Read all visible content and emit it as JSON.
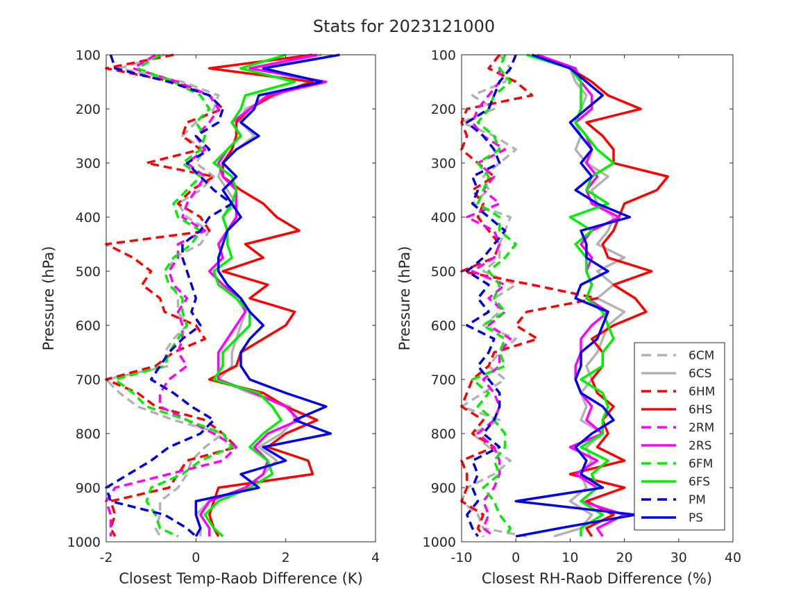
{
  "title": "Stats for 2023121000",
  "chart_data": [
    {
      "type": "line",
      "xlabel": "Closest Temp-Raob Difference (K)",
      "ylabel": "Pressure (hPa)",
      "xlim": [
        -2,
        4
      ],
      "ylim": [
        1000,
        100
      ],
      "y_reversed": true,
      "xticks": [
        "-2",
        "0",
        "2",
        "4"
      ],
      "yticks": [
        "100",
        "200",
        "300",
        "400",
        "500",
        "600",
        "700",
        "800",
        "900",
        "1000"
      ],
      "pressure_levels": [
        100,
        125,
        150,
        175,
        200,
        225,
        250,
        275,
        300,
        325,
        350,
        375,
        400,
        425,
        450,
        475,
        500,
        525,
        550,
        575,
        600,
        625,
        650,
        675,
        700,
        725,
        750,
        775,
        800,
        825,
        850,
        875,
        900,
        925,
        950,
        975,
        990
      ],
      "series": [
        {
          "name": "6CM",
          "color": "#b2b2b2",
          "dash": true,
          "values": [
            -0.7,
            -1.7,
            -0.3,
            0.5,
            0.4,
            0.0,
            -0.3,
            0.2,
            0.0,
            0.4,
            0.1,
            -0.4,
            -0.2,
            0.3,
            0.1,
            -0.5,
            -0.6,
            -0.5,
            -0.4,
            -0.4,
            -0.2,
            -0.5,
            -0.7,
            -0.6,
            -2.0,
            -1.7,
            -1.3,
            -0.5,
            0.6,
            0.2,
            -0.1,
            -0.2,
            -0.4,
            -0.8,
            -0.8,
            -0.9,
            -0.8
          ]
        },
        {
          "name": "6CS",
          "color": "#b2b2b2",
          "dash": false,
          "values": [
            2.8,
            1.5,
            2.5,
            1.8,
            1.1,
            1.0,
            1.3,
            0.9,
            0.6,
            0.5,
            0.7,
            0.9,
            0.6,
            0.7,
            0.5,
            0.6,
            0.3,
            0.6,
            0.9,
            1.1,
            1.0,
            0.9,
            0.8,
            0.8,
            0.5,
            1.2,
            2.1,
            2.2,
            1.9,
            1.4,
            1.8,
            1.5,
            1.1,
            0.3,
            0.0,
            0.1,
            0.1
          ]
        },
        {
          "name": "6HM",
          "color": "#ff0000",
          "dash": true,
          "values": [
            -0.5,
            -2.0,
            -0.5,
            0.3,
            0.6,
            -0.2,
            -0.3,
            0.1,
            -1.1,
            0.4,
            -0.1,
            -0.4,
            0.1,
            0.3,
            -2.1,
            -1.4,
            -1.0,
            -1.2,
            -0.8,
            -0.7,
            0.0,
            0.2,
            -0.5,
            -0.9,
            -2.0,
            -1.3,
            -0.9,
            0.2,
            0.6,
            0.9,
            -0.2,
            -0.4,
            -0.6,
            -1.9,
            -1.8,
            -1.9,
            -1.8
          ]
        },
        {
          "name": "6HS",
          "color": "#ff0000",
          "dash": false,
          "values": [
            2.6,
            0.3,
            2.6,
            1.7,
            1.2,
            0.9,
            0.9,
            0.8,
            0.6,
            0.6,
            1.0,
            1.5,
            1.8,
            2.3,
            1.1,
            1.5,
            0.6,
            1.6,
            1.2,
            2.2,
            2.0,
            1.5,
            1.0,
            0.9,
            0.3,
            1.5,
            2.0,
            2.7,
            2.0,
            1.6,
            2.5,
            2.6,
            0.5,
            0.4,
            0.3,
            0.4,
            0.5
          ]
        },
        {
          "name": "2RM",
          "color": "#ff00ff",
          "dash": true,
          "values": [
            -0.9,
            -1.4,
            -0.4,
            0.3,
            0.5,
            0.3,
            0.0,
            0.2,
            -0.2,
            0.2,
            0.0,
            -0.2,
            -0.3,
            0.2,
            -0.4,
            -0.4,
            -0.6,
            -0.5,
            -0.2,
            -0.4,
            -0.3,
            -0.3,
            -0.4,
            -0.2,
            -0.6,
            -0.8,
            -0.8,
            -0.2,
            0.4,
            0.9,
            0.6,
            -0.6,
            -1.8,
            -2.0,
            -1.9,
            -1.9,
            -1.9
          ]
        },
        {
          "name": "2RS",
          "color": "#ff00ff",
          "dash": false,
          "values": [
            2.7,
            1.2,
            2.9,
            1.6,
            1.2,
            0.8,
            1.0,
            0.7,
            0.5,
            0.6,
            0.9,
            0.9,
            0.9,
            0.7,
            0.5,
            0.6,
            0.3,
            0.6,
            1.0,
            1.1,
            0.9,
            0.7,
            0.5,
            0.5,
            0.5,
            1.3,
            2.0,
            2.3,
            1.6,
            1.3,
            1.6,
            1.5,
            1.1,
            0.3,
            0.1,
            0.3,
            0.3
          ]
        },
        {
          "name": "6FM",
          "color": "#00ee00",
          "dash": true,
          "values": [
            -0.8,
            -1.3,
            -0.5,
            0.1,
            0.3,
            0.0,
            0.2,
            0.1,
            -0.3,
            0.1,
            -0.2,
            -0.5,
            -0.4,
            0.1,
            -0.1,
            -0.5,
            -0.7,
            -0.6,
            -0.3,
            -0.3,
            -0.2,
            -0.4,
            -0.6,
            -0.7,
            -1.8,
            -1.4,
            -1.1,
            -0.2,
            0.6,
            0.8,
            0.1,
            -0.3,
            -1.0,
            -1.1,
            -0.9,
            -0.8,
            -0.4
          ]
        },
        {
          "name": "6FS",
          "color": "#00ee00",
          "dash": false,
          "values": [
            2.0,
            1.0,
            2.2,
            1.1,
            1.0,
            0.8,
            1.0,
            0.7,
            0.4,
            0.8,
            0.9,
            0.8,
            0.6,
            0.7,
            0.7,
            0.8,
            0.4,
            0.5,
            0.9,
            1.2,
            1.2,
            0.9,
            0.6,
            0.6,
            0.4,
            1.4,
            1.7,
            1.9,
            1.5,
            1.2,
            1.6,
            1.7,
            1.2,
            0.5,
            0.2,
            0.4,
            0.6
          ]
        },
        {
          "name": "PM",
          "color": "#0000dd",
          "dash": true,
          "values": [
            -1.9,
            -1.8,
            -0.6,
            0.3,
            0.6,
            0.5,
            0.0,
            0.3,
            -0.2,
            0.1,
            0.4,
            0.8,
            0.3,
            0.1,
            -0.3,
            -0.3,
            -0.2,
            -0.1,
            0.0,
            -0.1,
            0.1,
            -0.3,
            -0.6,
            -0.8,
            -1.0,
            -0.5,
            -0.1,
            0.4,
            0.1,
            -0.6,
            -1.0,
            -1.5,
            -2.0,
            -1.9,
            -0.7,
            -0.2,
            0.0
          ]
        },
        {
          "name": "PS",
          "color": "#0000ee",
          "dash": false,
          "values": [
            3.2,
            1.5,
            2.8,
            1.4,
            1.3,
            1.0,
            1.4,
            0.9,
            0.6,
            0.9,
            0.6,
            0.8,
            1.0,
            0.7,
            0.6,
            0.5,
            0.5,
            0.7,
            1.0,
            1.2,
            1.5,
            1.2,
            1.0,
            1.0,
            1.2,
            2.0,
            2.9,
            2.2,
            3.0,
            1.5,
            2.0,
            1.0,
            1.4,
            0.0,
            0.0,
            0.1,
            0.0
          ]
        }
      ]
    },
    {
      "type": "line",
      "xlabel": "Closest RH-Raob Difference (%)",
      "ylabel": "Pressure (hPa)",
      "xlim": [
        -10,
        40
      ],
      "ylim": [
        1000,
        100
      ],
      "y_reversed": true,
      "xticks": [
        "-10",
        "0",
        "10",
        "20",
        "30",
        "40"
      ],
      "yticks": [
        "100",
        "200",
        "300",
        "400",
        "500",
        "600",
        "700",
        "800",
        "900",
        "1000"
      ],
      "legend": {
        "position": "bottom-right",
        "entries": [
          "6CM",
          "6CS",
          "6HM",
          "6HS",
          "2RM",
          "2RS",
          "6FM",
          "6FS",
          "PM",
          "PS"
        ]
      },
      "pressure_levels": [
        100,
        125,
        150,
        175,
        200,
        225,
        250,
        275,
        300,
        325,
        350,
        375,
        400,
        425,
        450,
        475,
        500,
        525,
        550,
        575,
        600,
        625,
        650,
        675,
        700,
        725,
        750,
        775,
        800,
        825,
        850,
        875,
        900,
        925,
        950,
        975,
        990
      ],
      "series": [
        {
          "name": "6CM",
          "color": "#b2b2b2",
          "dash": true,
          "values": [
            -3,
            -1,
            -2,
            -8,
            -4,
            -10,
            -4,
            0,
            -3,
            -6,
            -5,
            -8,
            -1,
            -2,
            -3,
            -3,
            -6,
            0,
            -4,
            -3,
            -6,
            0,
            -3,
            -5,
            -2,
            -6,
            -10,
            -3,
            -8,
            -5,
            -1,
            -4,
            -9,
            -10,
            -7,
            -6,
            2
          ]
        },
        {
          "name": "6CS",
          "color": "#b2b2b2",
          "dash": false,
          "values": [
            3,
            10,
            11,
            13,
            12,
            11,
            12,
            11,
            13,
            17,
            14,
            15,
            18,
            17,
            15,
            20,
            15,
            18,
            15,
            20,
            17,
            16,
            15,
            13,
            14,
            12,
            13,
            12,
            16,
            13,
            14,
            12,
            13,
            10,
            14,
            12,
            7
          ]
        },
        {
          "name": "6HM",
          "color": "#ff0000",
          "dash": true,
          "values": [
            -3,
            -5,
            0,
            3,
            -9,
            -10,
            -9,
            -10,
            -7,
            -4,
            -8,
            -6,
            -7,
            -5,
            -3,
            -4,
            -10,
            3,
            15,
            2,
            0,
            4,
            -4,
            -5,
            -8,
            -9,
            -10,
            -6,
            -8,
            -4,
            -10,
            -9,
            -9,
            -10,
            -6,
            -7,
            -6
          ]
        },
        {
          "name": "6HS",
          "color": "#ff0000",
          "dash": false,
          "values": [
            3,
            10,
            14,
            17,
            23,
            13,
            16,
            18,
            18,
            28,
            26,
            20,
            19,
            18,
            16,
            17,
            25,
            18,
            22,
            24,
            18,
            14,
            16,
            16,
            14,
            15,
            18,
            16,
            17,
            15,
            20,
            10,
            20,
            13,
            18,
            13,
            14
          ]
        },
        {
          "name": "2RM",
          "color": "#ff00ff",
          "dash": true,
          "values": [
            -2,
            -3,
            -3,
            -5,
            -7,
            -8,
            -6,
            -2,
            -7,
            -4,
            -6,
            -3,
            -9,
            -4,
            -3,
            -4,
            -8,
            -2,
            -5,
            -2,
            -5,
            -1,
            -3,
            -3,
            -6,
            -4,
            -3,
            -4,
            -7,
            -4,
            -3,
            -3,
            -4,
            -6,
            -5,
            -6,
            -4
          ]
        },
        {
          "name": "2RS",
          "color": "#ff00ff",
          "dash": false,
          "values": [
            4,
            11,
            12,
            14,
            14,
            11,
            13,
            14,
            13,
            15,
            13,
            14,
            19,
            14,
            12,
            14,
            13,
            14,
            13,
            17,
            14,
            12,
            12,
            11,
            11,
            12,
            14,
            13,
            16,
            10,
            15,
            11,
            15,
            12,
            20,
            15,
            16
          ]
        },
        {
          "name": "6FM",
          "color": "#00ee00",
          "dash": true,
          "values": [
            -2,
            -3,
            -1,
            -4,
            -5,
            -7,
            -4,
            -3,
            -7,
            -5,
            -6,
            -7,
            -3,
            -3,
            0,
            -2,
            -5,
            -3,
            -4,
            -2,
            -6,
            -2,
            -3,
            -2,
            -8,
            -5,
            -7,
            -4,
            -2,
            -2,
            -4,
            -3,
            -6,
            -4,
            -3,
            -1,
            -2
          ]
        },
        {
          "name": "6FS",
          "color": "#00ee00",
          "dash": false,
          "values": [
            2,
            10,
            12,
            12,
            12,
            11,
            13,
            15,
            18,
            14,
            13,
            17,
            10,
            14,
            11,
            13,
            13,
            14,
            13,
            16,
            17,
            18,
            16,
            16,
            12,
            16,
            17,
            16,
            16,
            12,
            17,
            14,
            15,
            12,
            16,
            12,
            12
          ]
        },
        {
          "name": "PM",
          "color": "#0000dd",
          "dash": true,
          "values": [
            0,
            -1,
            -3,
            -4,
            -5,
            -9,
            -6,
            -4,
            -3,
            -8,
            -7,
            -8,
            -5,
            -2,
            -4,
            -6,
            -9,
            -5,
            -7,
            -5,
            -9,
            -4,
            -5,
            -7,
            -5,
            -3,
            -3,
            -4,
            -6,
            -3,
            -8,
            -7,
            -8,
            -7,
            -9,
            -8,
            -7
          ]
        },
        {
          "name": "PS",
          "color": "#0000ee",
          "dash": false,
          "values": [
            3,
            10,
            13,
            16,
            13,
            10,
            12,
            14,
            12,
            14,
            11,
            15,
            21,
            12,
            13,
            13,
            17,
            12,
            11,
            17,
            16,
            15,
            12,
            12,
            11,
            12,
            16,
            18,
            14,
            11,
            13,
            12,
            16,
            0,
            22,
            8,
            0
          ]
        }
      ]
    }
  ]
}
